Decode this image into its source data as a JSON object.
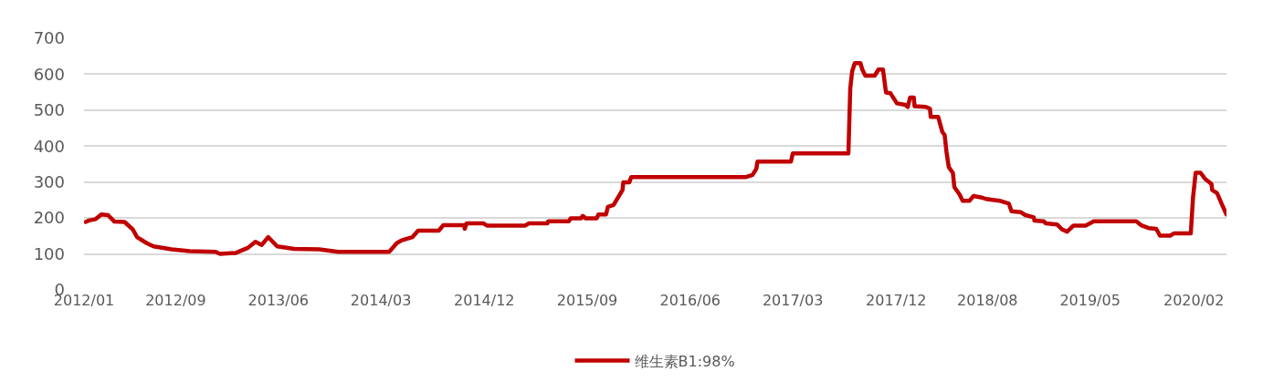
{
  "chart_data": {
    "type": "line",
    "legend": "bottom",
    "grid": "y",
    "marker": "none",
    "line_style": "solid",
    "xlim": [
      "2012-01-01",
      "2020-04-28"
    ],
    "ylim": [
      0,
      700
    ],
    "yticks": [
      0,
      100,
      200,
      300,
      400,
      500,
      600,
      700
    ],
    "xticks": [
      {
        "value": "2012-01-01",
        "label": "2012/01"
      },
      {
        "value": "2012-09-01",
        "label": "2012/09"
      },
      {
        "value": "2013-06-01",
        "label": "2013/06"
      },
      {
        "value": "2014-03-01",
        "label": "2014/03"
      },
      {
        "value": "2014-12-01",
        "label": "2014/12"
      },
      {
        "value": "2015-09-01",
        "label": "2015/09"
      },
      {
        "value": "2016-06-01",
        "label": "2016/06"
      },
      {
        "value": "2017-03-01",
        "label": "2017/03"
      },
      {
        "value": "2017-12-01",
        "label": "2017/12"
      },
      {
        "value": "2018-08-01",
        "label": "2018/08"
      },
      {
        "value": "2019-05-01",
        "label": "2019/05"
      },
      {
        "value": "2020-02-01",
        "label": "2020/02"
      }
    ],
    "x": [
      "2012-01-05",
      "2012-01-14",
      "2012-02-01",
      "2012-02-16",
      "2012-03-05",
      "2012-03-22",
      "2012-04-18",
      "2012-05-10",
      "2012-05-21",
      "2012-06-16",
      "2012-07-04",
      "2012-08-21",
      "2012-10-08",
      "2012-12-16",
      "2012-12-28",
      "2013-02-08",
      "2013-03-12",
      "2013-04-01",
      "2013-04-18",
      "2013-05-05",
      "2013-05-29",
      "2013-07-13",
      "2013-09-18",
      "2013-11-07",
      "2014-03-23",
      "2014-04-12",
      "2014-04-25",
      "2014-05-24",
      "2014-06-08",
      "2014-08-02",
      "2014-08-14",
      "2014-10-08",
      "2014-10-10",
      "2014-10-15",
      "2014-11-29",
      "2014-12-08",
      "2015-03-20",
      "2015-03-30",
      "2015-05-18",
      "2015-05-20",
      "2015-07-14",
      "2015-07-19",
      "2015-08-15",
      "2015-08-20",
      "2015-08-28",
      "2015-09-26",
      "2015-10-01",
      "2015-10-21",
      "2015-10-26",
      "2015-11-10",
      "2015-11-22",
      "2015-12-04",
      "2015-12-06",
      "2015-12-22",
      "2015-12-27",
      "2016-10-28",
      "2016-11-14",
      "2016-11-24",
      "2016-11-27",
      "2017-02-24",
      "2017-03-01",
      "2017-07-27",
      "2017-08-01",
      "2017-08-06",
      "2017-08-13",
      "2017-08-28",
      "2017-09-02",
      "2017-09-10",
      "2017-10-05",
      "2017-10-15",
      "2017-10-27",
      "2017-11-04",
      "2017-11-16",
      "2017-12-03",
      "2017-12-25",
      "2018-01-01",
      "2018-01-07",
      "2018-01-17",
      "2018-01-19",
      "2018-02-18",
      "2018-03-01",
      "2018-03-03",
      "2018-03-23",
      "2018-04-03",
      "2018-04-09",
      "2018-04-14",
      "2018-04-20",
      "2018-05-01",
      "2018-05-05",
      "2018-05-19",
      "2018-05-27",
      "2018-06-14",
      "2018-06-25",
      "2018-07-17",
      "2018-07-28",
      "2018-09-02",
      "2018-09-27",
      "2018-10-04",
      "2018-10-29",
      "2018-11-10",
      "2018-12-02",
      "2018-12-04",
      "2018-12-29",
      "2019-01-03",
      "2019-02-02",
      "2019-02-16",
      "2019-03-01",
      "2019-03-18",
      "2019-04-19",
      "2019-05-11",
      "2019-09-01",
      "2019-09-14",
      "2019-10-04",
      "2019-10-24",
      "2019-11-03",
      "2019-11-30",
      "2019-12-10",
      "2020-01-24",
      "2020-01-30",
      "2020-02-06",
      "2020-02-19",
      "2020-03-02",
      "2020-03-19",
      "2020-03-21",
      "2020-04-03",
      "2020-04-15",
      "2020-04-28"
    ],
    "series": [
      {
        "name": "维生素B1:98%",
        "color": "#c00000",
        "values": [
          189,
          193,
          197,
          210,
          208,
          190,
          189,
          168,
          147,
          130,
          121,
          113,
          108,
          106,
          100,
          103,
          117,
          134,
          125,
          147,
          121,
          114,
          113,
          106,
          106,
          130,
          138,
          147,
          165,
          165,
          180,
          180,
          170,
          185,
          185,
          179,
          179,
          185,
          185,
          191,
          191,
          199,
          199,
          206,
          199,
          199,
          210,
          210,
          231,
          236,
          257,
          278,
          299,
          299,
          314,
          314,
          320,
          337,
          357,
          357,
          380,
          380,
          562,
          608,
          631,
          631,
          613,
          596,
          596,
          613,
          613,
          549,
          547,
          519,
          515,
          509,
          535,
          535,
          511,
          509,
          504,
          481,
          481,
          439,
          431,
          384,
          342,
          325,
          286,
          265,
          248,
          248,
          261,
          257,
          253,
          248,
          240,
          219,
          216,
          208,
          202,
          193,
          191,
          185,
          182,
          168,
          162,
          179,
          179,
          191,
          191,
          180,
          172,
          170,
          151,
          151,
          157,
          157,
          257,
          326,
          326,
          309,
          295,
          278,
          269,
          240,
          210
        ]
      }
    ]
  }
}
